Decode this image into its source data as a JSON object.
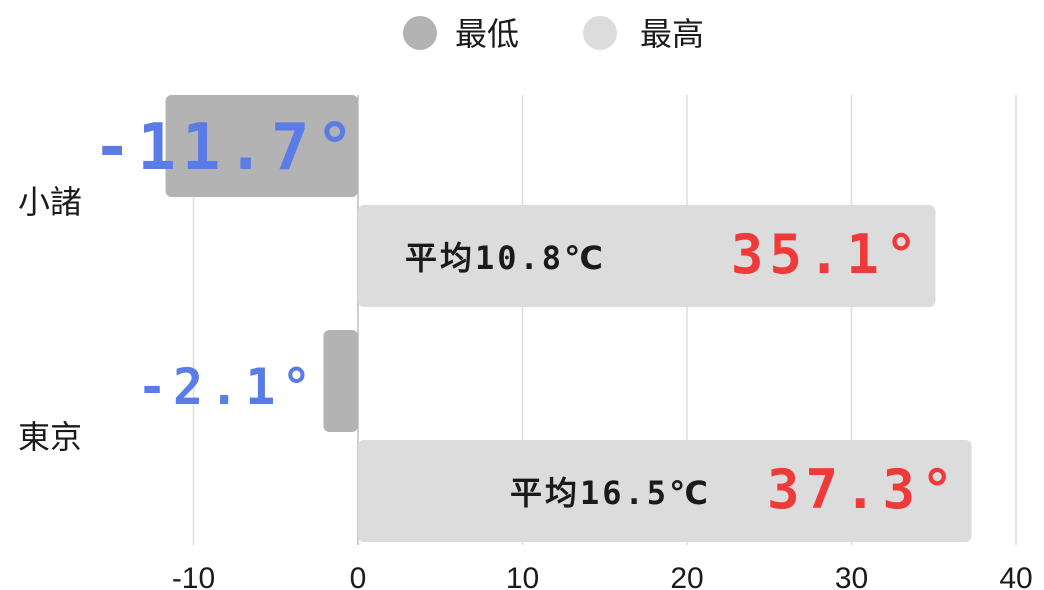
{
  "chart_data": {
    "type": "bar",
    "orientation": "horizontal",
    "categories": [
      "小諸",
      "東京"
    ],
    "series": [
      {
        "name": "最低",
        "values": [
          -11.7,
          -2.1
        ],
        "color": "#b3b3b3",
        "labels": [
          "-11.7°",
          "-2.1°"
        ],
        "label_color": "#5b7be6"
      },
      {
        "name": "最高",
        "values": [
          35.1,
          37.3
        ],
        "color": "#dcdcdc",
        "labels": [
          "35.1°",
          "37.3°"
        ],
        "label_color": "#f03a3a"
      }
    ],
    "annotations": [
      "平均10.8℃",
      "平均16.5℃"
    ],
    "xlim": [
      -10,
      40
    ],
    "xticks": [
      "-10",
      "0",
      "10",
      "20",
      "30",
      "40"
    ],
    "grid": true,
    "legend_position": "top-center"
  }
}
